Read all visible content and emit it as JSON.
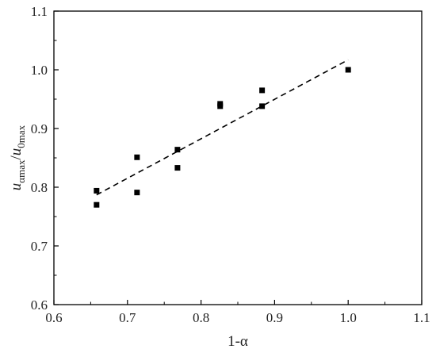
{
  "chart_data": {
    "type": "scatter",
    "title": "",
    "xlabel": "1-α",
    "ylabel": {
      "parts": [
        {
          "text": "u",
          "style": "italic",
          "sub": false
        },
        {
          "text": "αmax",
          "style": "normal",
          "sub": true
        },
        {
          "text": "/",
          "style": "normal",
          "sub": false
        },
        {
          "text": "u",
          "style": "italic",
          "sub": false
        },
        {
          "text": "0max",
          "style": "normal",
          "sub": true
        }
      ]
    },
    "xlim": [
      0.6,
      1.1
    ],
    "ylim": [
      0.6,
      1.1
    ],
    "x_ticks": [
      0.6,
      0.7,
      0.8,
      0.9,
      1.0,
      1.1
    ],
    "y_ticks": [
      0.6,
      0.7,
      0.8,
      0.9,
      1.0,
      1.1
    ],
    "x_tick_labels": [
      "0.6",
      "0.7",
      "0.8",
      "0.9",
      "1.0",
      "1.1"
    ],
    "y_tick_labels": [
      "0.6",
      "0.7",
      "0.8",
      "0.9",
      "1.0",
      "1.1"
    ],
    "grid": false,
    "legend": "none",
    "marker": "square",
    "marker_color": "#000000",
    "points": [
      {
        "x": 0.658,
        "y": 0.794
      },
      {
        "x": 0.658,
        "y": 0.77
      },
      {
        "x": 0.713,
        "y": 0.851
      },
      {
        "x": 0.713,
        "y": 0.791
      },
      {
        "x": 0.768,
        "y": 0.864
      },
      {
        "x": 0.768,
        "y": 0.833
      },
      {
        "x": 0.826,
        "y": 0.942
      },
      {
        "x": 0.826,
        "y": 0.938
      },
      {
        "x": 0.883,
        "y": 0.965
      },
      {
        "x": 0.883,
        "y": 0.938
      },
      {
        "x": 1.0,
        "y": 1.0
      }
    ],
    "fit_line": {
      "style": "dashed",
      "color": "#000000",
      "x": [
        0.658,
        1.0
      ],
      "y": [
        0.787,
        1.017
      ]
    }
  }
}
